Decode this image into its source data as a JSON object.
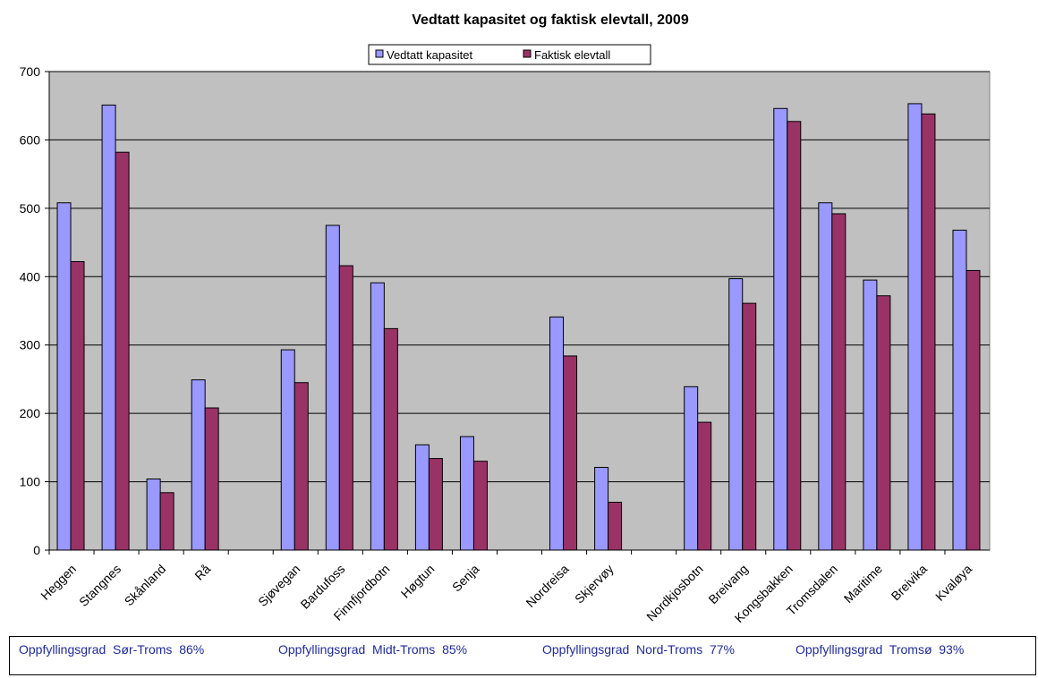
{
  "chart_data": {
    "type": "bar",
    "title": "Vedtatt kapasitet og faktisk elevtall, 2009",
    "xlabel": "",
    "ylabel": "",
    "ylim": [
      0,
      700
    ],
    "yticks": [
      0,
      100,
      200,
      300,
      400,
      500,
      600,
      700
    ],
    "grid": true,
    "legend_position": "top-center",
    "plot_background": "#c0c0c0",
    "categories": [
      "Heggen",
      "Stangnes",
      "Skånland",
      "Rå",
      "",
      "Sjøvegan",
      "Bardufoss",
      "Finnfjordbotn",
      "Høgtun",
      "Senja",
      "",
      "Nordreisa",
      "Skjervøy",
      "",
      "Nordkjosbotn",
      "Breivang",
      "Kongsbakken",
      "Tromsdalen",
      "Maritime",
      "Breivika",
      "Kvaløya"
    ],
    "series": [
      {
        "name": "Vedtatt kapasitet",
        "color": "#9999ff",
        "values": [
          508,
          651,
          104,
          249,
          null,
          293,
          475,
          391,
          154,
          166,
          null,
          341,
          121,
          null,
          239,
          397,
          646,
          508,
          395,
          653,
          468
        ]
      },
      {
        "name": "Faktisk elevtall",
        "color": "#993366",
        "values": [
          422,
          582,
          84,
          208,
          null,
          245,
          416,
          324,
          134,
          130,
          null,
          284,
          70,
          null,
          187,
          361,
          627,
          492,
          372,
          638,
          409
        ]
      }
    ]
  },
  "footer": {
    "items": [
      "Oppfyllingsgrad  Sør-Troms  86%",
      "Oppfyllingsgrad  Midt-Troms  85%",
      "Oppfyllingsgrad  Nord-Troms  77%",
      "Oppfyllingsgrad  Tromsø  93%"
    ]
  }
}
